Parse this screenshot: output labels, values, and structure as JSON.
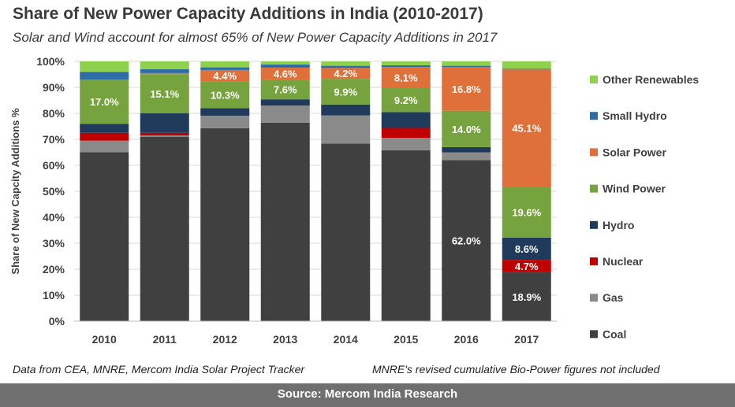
{
  "header": {
    "title": "Share of New Power Capacity Additions in India (2010-2017)",
    "subtitle": "Solar and Wind account for almost 65% of New Power Capacity Additions in 2017"
  },
  "notes": {
    "left": "Data from CEA, MNRE, Mercom India Solar Project Tracker",
    "right": "MNRE's revised cumulative Bio-Power figures not included"
  },
  "footer": {
    "source": "Source: Mercom India Research"
  },
  "chart_data": {
    "type": "bar",
    "stacked": true,
    "percent": true,
    "ylabel": "Share of New Capcity Additions %",
    "ylim": [
      0,
      100
    ],
    "yticks": [
      "0%",
      "10%",
      "20%",
      "30%",
      "40%",
      "50%",
      "60%",
      "70%",
      "80%",
      "90%",
      "100%"
    ],
    "grid": true,
    "legend_position": "right",
    "categories": [
      "2010",
      "2011",
      "2012",
      "2013",
      "2014",
      "2015",
      "2016",
      "2017"
    ],
    "series": [
      {
        "name": "Coal",
        "color": "#404040",
        "values": [
          65.0,
          71.0,
          74.3,
          76.4,
          68.4,
          65.8,
          62.0,
          18.9
        ],
        "labels": [
          null,
          null,
          null,
          null,
          null,
          null,
          "62.0%",
          "18.9%"
        ]
      },
      {
        "name": "Gas",
        "color": "#8a8a8a",
        "values": [
          4.5,
          0.5,
          4.8,
          6.6,
          10.8,
          4.8,
          3.0,
          0.0
        ],
        "labels": [
          null,
          null,
          null,
          null,
          null,
          null,
          null,
          null
        ]
      },
      {
        "name": "Nuclear",
        "color": "#c00000",
        "values": [
          3.0,
          1.0,
          0.0,
          0.0,
          0.0,
          3.8,
          0.0,
          4.7
        ],
        "labels": [
          null,
          null,
          null,
          null,
          null,
          null,
          null,
          "4.7%"
        ]
      },
      {
        "name": "Hydro",
        "color": "#1f3a5a",
        "values": [
          3.5,
          7.5,
          2.9,
          2.4,
          4.2,
          6.1,
          2.0,
          8.6
        ],
        "labels": [
          null,
          null,
          null,
          null,
          null,
          null,
          null,
          "8.6%"
        ]
      },
      {
        "name": "Wind Power",
        "color": "#77a33e",
        "values": [
          17.0,
          15.1,
          10.3,
          7.6,
          9.9,
          9.2,
          14.0,
          19.6
        ],
        "labels": [
          "17.0%",
          "15.1%",
          "10.3%",
          "7.6%",
          "9.9%",
          "9.2%",
          "14.0%",
          "19.6%"
        ]
      },
      {
        "name": "Solar Power",
        "color": "#e0703a",
        "values": [
          0.0,
          0.4,
          4.4,
          4.6,
          4.2,
          8.1,
          16.8,
          45.1
        ],
        "labels": [
          null,
          null,
          "4.4%",
          "4.6%",
          "4.2%",
          "8.1%",
          "16.8%",
          "45.1%"
        ]
      },
      {
        "name": "Small Hydro",
        "color": "#2e6ca4",
        "values": [
          3.0,
          1.5,
          1.0,
          1.2,
          0.8,
          0.7,
          0.5,
          0.3
        ],
        "labels": [
          null,
          null,
          null,
          null,
          null,
          null,
          null,
          null
        ]
      },
      {
        "name": "Other Renewables",
        "color": "#8fd14f",
        "values": [
          4.0,
          3.0,
          2.3,
          1.2,
          1.7,
          1.5,
          1.7,
          2.8
        ],
        "labels": [
          null,
          null,
          null,
          null,
          null,
          null,
          null,
          null
        ]
      }
    ]
  }
}
